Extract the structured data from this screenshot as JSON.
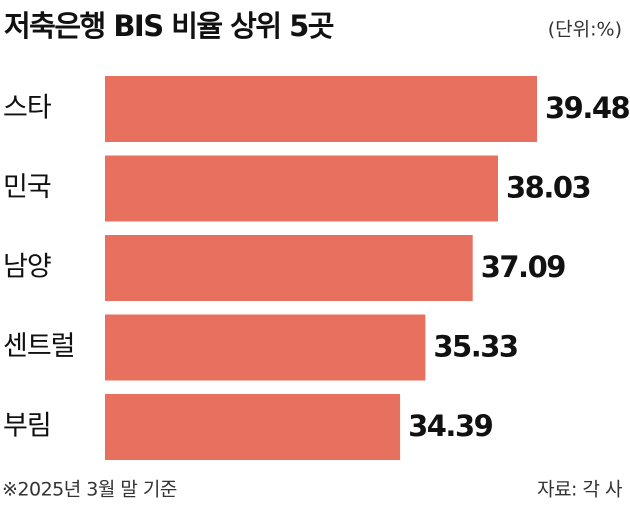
{
  "chart_data": {
    "type": "bar",
    "orientation": "horizontal",
    "title": "저축은행 BIS 비율 상위 5곳",
    "unit": "(단위:%)",
    "categories": [
      "스타",
      "민국",
      "남양",
      "센트럴",
      "부림"
    ],
    "values": [
      39.48,
      38.03,
      37.09,
      35.33,
      34.39
    ],
    "color": "#e8705f",
    "footnote": "※2025년 3월 말 기준",
    "source": "자료: 각 사"
  }
}
